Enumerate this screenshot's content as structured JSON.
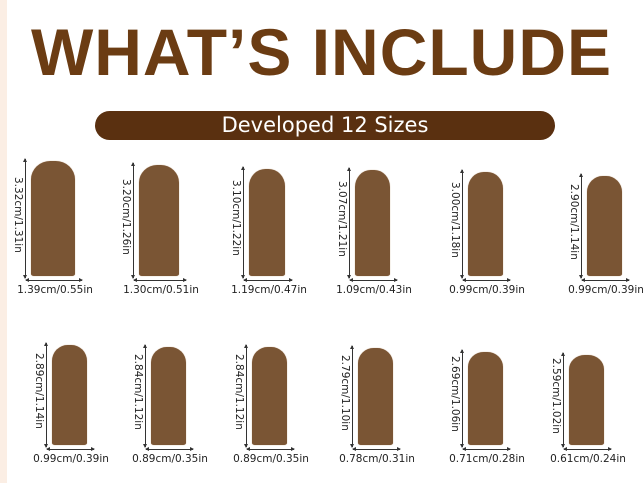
{
  "title": "WHAT’S INCLUDE",
  "banner": "Developed 12 Sizes",
  "colors": {
    "title": "#6b3c13",
    "banner": "#5a3010",
    "nail": "#7a5534"
  },
  "sizes": [
    {
      "length": "3.32cm/1.31in",
      "width": "1.39cm/0.55in",
      "length_cm": 3.32,
      "width_cm": 1.39
    },
    {
      "length": "3.20cm/1.26in",
      "width": "1.30cm/0.51in",
      "length_cm": 3.2,
      "width_cm": 1.3
    },
    {
      "length": "3.10cm/1.22in",
      "width": "1.19cm/0.47in",
      "length_cm": 3.1,
      "width_cm": 1.19
    },
    {
      "length": "3.07cm/1.21in",
      "width": "1.09cm/0.43in",
      "length_cm": 3.07,
      "width_cm": 1.09
    },
    {
      "length": "3.00cm/1.18in",
      "width": "0.99cm/0.39in",
      "length_cm": 3.0,
      "width_cm": 0.99
    },
    {
      "length": "2.90cm/1.14in",
      "width": "0.99cm/0.39in",
      "length_cm": 2.9,
      "width_cm": 0.99
    },
    {
      "length": "2.89cm/1.14in",
      "width": "0.99cm/0.39in",
      "length_cm": 2.89,
      "width_cm": 0.99
    },
    {
      "length": "2.84cm/1.12in",
      "width": "0.89cm/0.35in",
      "length_cm": 2.84,
      "width_cm": 0.89
    },
    {
      "length": "2.84cm/1.12in",
      "width": "0.89cm/0.35in",
      "length_cm": 2.84,
      "width_cm": 0.89
    },
    {
      "length": "2.79cm/1.10in",
      "width": "0.78cm/0.31in",
      "length_cm": 2.79,
      "width_cm": 0.78
    },
    {
      "length": "2.69cm/1.06in",
      "width": "0.71cm/0.28in",
      "length_cm": 2.69,
      "width_cm": 0.71
    },
    {
      "length": "2.59cm/1.02in",
      "width": "0.61cm/0.24in",
      "length_cm": 2.59,
      "width_cm": 0.61
    }
  ]
}
